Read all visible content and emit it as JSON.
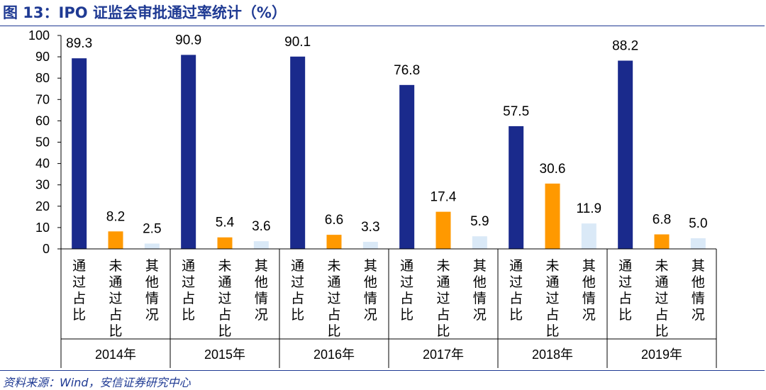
{
  "figure": {
    "title": "图 13：IPO 证监会审批通过率统计（%）",
    "source": "资料来源：Wind，安信证券研究中心"
  },
  "colors": {
    "title": "#1f3a93",
    "passed": "#1a2a8c",
    "failed": "#ff9900",
    "other": "#dae9f7",
    "axis": "#000000"
  },
  "chart_data": {
    "type": "bar",
    "ylim": [
      0,
      100
    ],
    "yticks": [
      0,
      10,
      20,
      30,
      40,
      50,
      60,
      70,
      80,
      90,
      100
    ],
    "grid": false,
    "legend": "none",
    "categories": [
      "2014年",
      "2015年",
      "2016年",
      "2017年",
      "2018年",
      "2019年"
    ],
    "bar_labels": [
      "通过占比",
      "未通过占比",
      "其他情况"
    ],
    "series": [
      {
        "name": "通过占比",
        "color_key": "passed",
        "values": [
          89.3,
          90.9,
          90.1,
          76.8,
          57.5,
          88.2
        ],
        "labels": [
          "89.3",
          "90.9",
          "90.1",
          "76.8",
          "57.5",
          "88.2"
        ]
      },
      {
        "name": "未通过占比",
        "color_key": "failed",
        "values": [
          8.2,
          5.4,
          6.6,
          17.4,
          30.6,
          6.8
        ],
        "labels": [
          "8.2",
          "5.4",
          "6.6",
          "17.4",
          "30.6",
          "6.8"
        ]
      },
      {
        "name": "其他情况",
        "color_key": "other",
        "values": [
          2.5,
          3.6,
          3.3,
          5.9,
          11.9,
          5.0
        ],
        "labels": [
          "2.5",
          "3.6",
          "3.3",
          "5.9",
          "11.9",
          "5.0"
        ]
      }
    ]
  }
}
